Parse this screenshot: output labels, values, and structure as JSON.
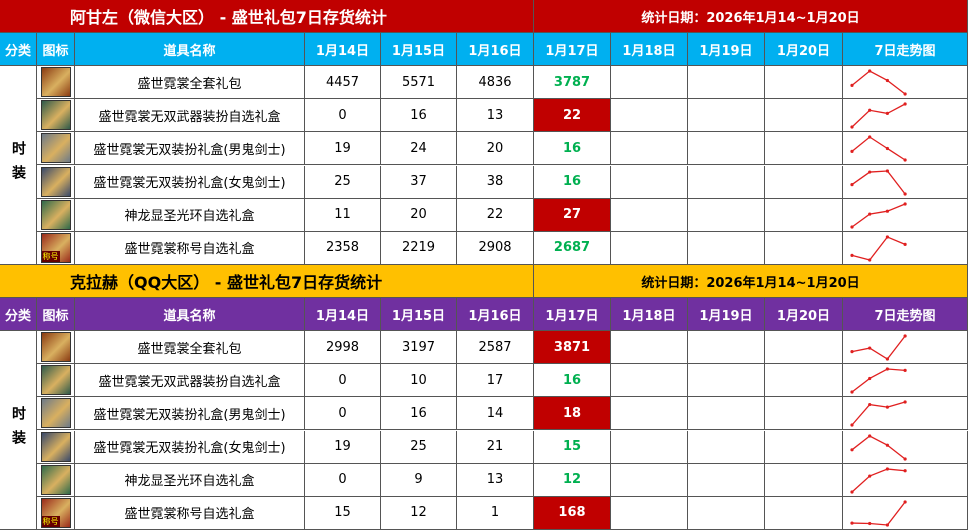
{
  "sections": [
    {
      "title": "阿甘左（微信大区） - 盛世礼包7日存货统计",
      "date_range": "统计日期：2026年1月14~1月20日",
      "headers": [
        "分类",
        "图标",
        "道具名称",
        "1月14日",
        "1月15日",
        "1月16日",
        "1月17日",
        "1月18日",
        "1月19日",
        "1月20日",
        "7日走势图"
      ],
      "category": "时装",
      "items": [
        {
          "name": "盛世霓裳全套礼包",
          "values": [
            4457,
            5571,
            4836,
            3787
          ]
        },
        {
          "name": "盛世霓裳无双武器装扮自选礼盒",
          "values": [
            0,
            16,
            13,
            22
          ]
        },
        {
          "name": "盛世霓裳无双装扮礼盒(男鬼剑士)",
          "values": [
            19,
            24,
            20,
            16
          ]
        },
        {
          "name": "盛世霓裳无双装扮礼盒(女鬼剑士)",
          "values": [
            25,
            37,
            38,
            16
          ]
        },
        {
          "name": "神龙显圣光环自选礼盒",
          "values": [
            11,
            20,
            22,
            27
          ]
        },
        {
          "name": "盛世霓裳称号自选礼盒",
          "values": [
            2358,
            2219,
            2908,
            2687
          ],
          "icon_text": "称号"
        }
      ]
    },
    {
      "title": "克拉赫（QQ大区） - 盛世礼包7日存货统计",
      "date_range": "统计日期：2026年1月14~1月20日",
      "headers": [
        "分类",
        "图标",
        "道具名称",
        "1月14日",
        "1月15日",
        "1月16日",
        "1月17日",
        "1月18日",
        "1月19日",
        "1月20日",
        "7日走势图"
      ],
      "category": "时装",
      "items": [
        {
          "name": "盛世霓裳全套礼包",
          "values": [
            2998,
            3197,
            2587,
            3871
          ]
        },
        {
          "name": "盛世霓裳无双武器装扮自选礼盒",
          "values": [
            0,
            10,
            17,
            16
          ]
        },
        {
          "name": "盛世霓裳无双装扮礼盒(男鬼剑士)",
          "values": [
            0,
            16,
            14,
            18
          ]
        },
        {
          "name": "盛世霓裳无双装扮礼盒(女鬼剑士)",
          "values": [
            19,
            25,
            21,
            15
          ]
        },
        {
          "name": "神龙显圣光环自选礼盒",
          "values": [
            0,
            9,
            13,
            12
          ]
        },
        {
          "name": "盛世霓裳称号自选礼盒",
          "values": [
            15,
            12,
            1,
            168
          ],
          "icon_text": "称号"
        }
      ]
    }
  ]
}
